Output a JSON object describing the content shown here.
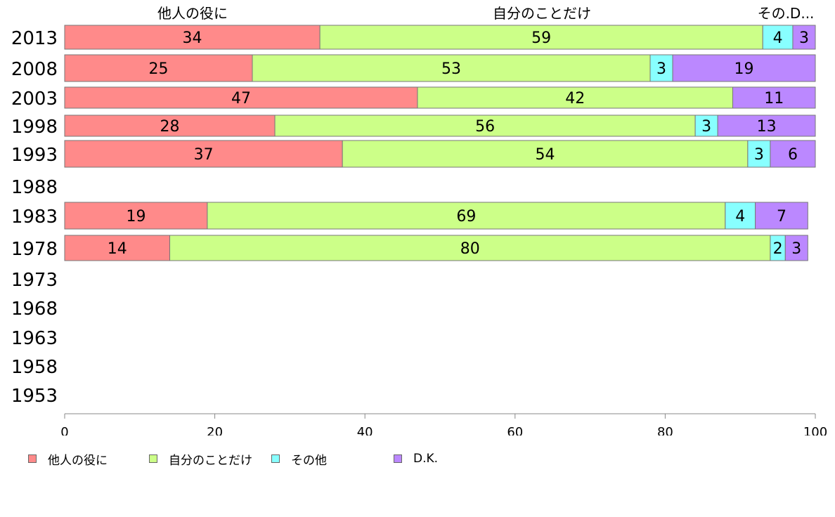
{
  "chart_data": {
    "type": "bar",
    "orientation": "horizontal",
    "stacked": true,
    "categories": [
      "2013",
      "2008",
      "2003",
      "1998",
      "1993",
      "1988",
      "1983",
      "1978",
      "1973",
      "1968",
      "1963",
      "1958",
      "1953"
    ],
    "series": [
      {
        "name": "他人の役に",
        "color": "#ff8a8a",
        "values": [
          34,
          25,
          47,
          28,
          37,
          null,
          19,
          14,
          null,
          null,
          null,
          null,
          null
        ]
      },
      {
        "name": "自分のことだけ",
        "color": "#ccff88",
        "values": [
          59,
          53,
          42,
          56,
          54,
          null,
          69,
          80,
          null,
          null,
          null,
          null,
          null
        ]
      },
      {
        "name": "その他",
        "color": "#88ffff",
        "values": [
          4,
          3,
          0,
          3,
          3,
          null,
          4,
          2,
          null,
          null,
          null,
          null,
          null
        ]
      },
      {
        "name": "D.K.",
        "color": "#bb88ff",
        "values": [
          3,
          19,
          11,
          13,
          6,
          null,
          7,
          3,
          null,
          null,
          null,
          null,
          null
        ]
      }
    ],
    "top_labels": [
      "他人の役に",
      "自分のことだけ",
      "その.D..."
    ],
    "xlim": [
      0,
      100
    ],
    "xticks": [
      0,
      20,
      40,
      60,
      80,
      100
    ],
    "grid": false,
    "legend_position": "bottom-left"
  }
}
